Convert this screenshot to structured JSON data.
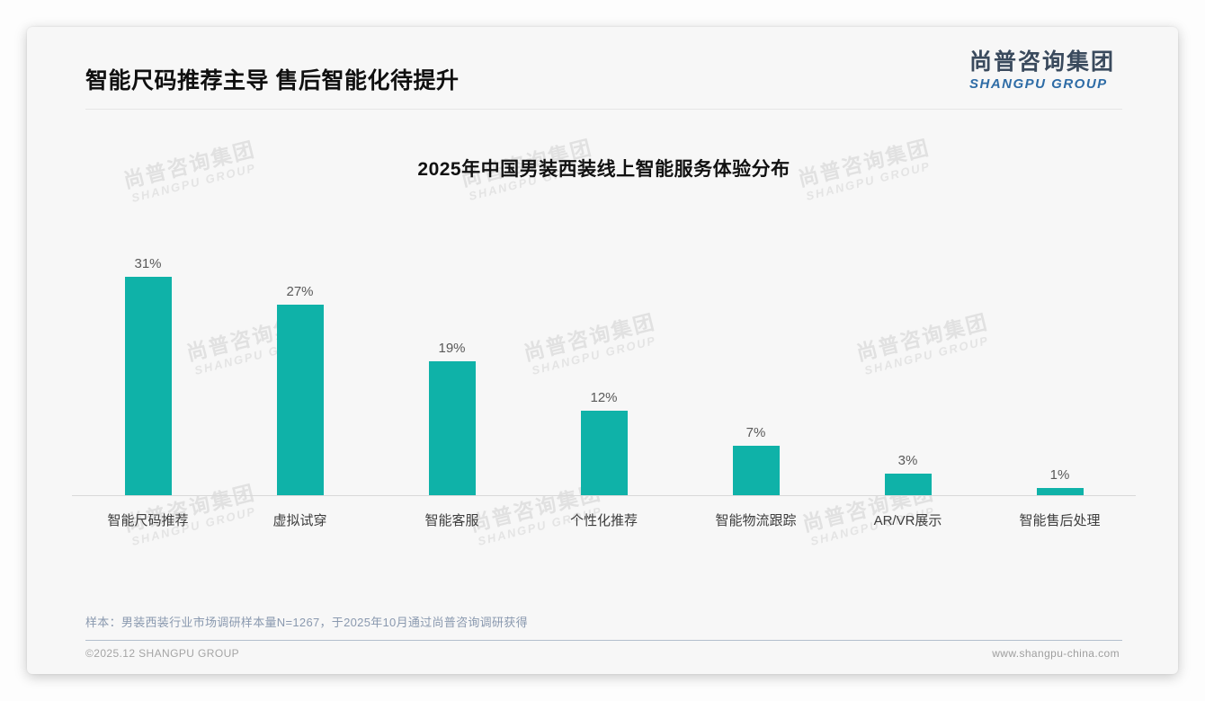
{
  "page": {
    "title": "智能尺码推荐主导 售后智能化待提升"
  },
  "logo": {
    "cn": "尚普咨询集团",
    "en": "SHANGPU GROUP",
    "cn_color": "#3a4a5d",
    "en_color": "#2e6ca6"
  },
  "watermark": {
    "cn": "尚普咨询集团",
    "en": "SHANGPU GROUP"
  },
  "chart_data": {
    "type": "bar",
    "title": "2025年中国男装西装线上智能服务体验分布",
    "categories": [
      "智能尺码推荐",
      "虚拟试穿",
      "智能客服",
      "个性化推荐",
      "智能物流跟踪",
      "AR/VR展示",
      "智能售后处理"
    ],
    "values": [
      31,
      27,
      19,
      12,
      7,
      3,
      1
    ],
    "value_labels": [
      "31%",
      "27%",
      "19%",
      "12%",
      "7%",
      "3%",
      "1%"
    ],
    "unit": "%",
    "bar_color": "#0fb2a8",
    "ylim": [
      0,
      33
    ],
    "grid": false,
    "legend_position": "none"
  },
  "note": "样本：男装西装行业市场调研样本量N=1267，于2025年10月通过尚普咨询调研获得",
  "footer": {
    "left": "©2025.12 SHANGPU GROUP",
    "right": "www.shangpu-china.com"
  }
}
